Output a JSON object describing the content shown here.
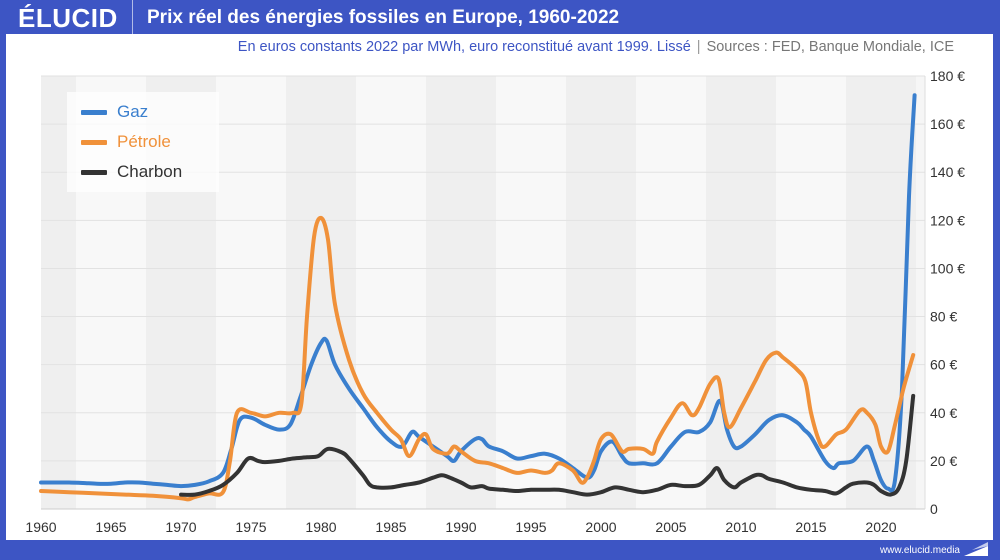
{
  "header": {
    "logo": "ÉLUCID",
    "title": "Prix réel des énergies fossiles en Europe, 1960-2022"
  },
  "subtitle": {
    "text": "En euros constants 2022 par MWh, euro reconstitué avant 1999. Lissé",
    "separator": "|",
    "sources": "Sources : FED, Banque Mondiale, ICE"
  },
  "footer": {
    "url": "www.elucid.media"
  },
  "colors": {
    "brand": "#3d55c4",
    "gaz": "#3a7fce",
    "petrole": "#f0913a",
    "charbon": "#333333"
  },
  "chart_data": {
    "type": "line",
    "title": "Prix réel des énergies fossiles en Europe, 1960-2022",
    "subtitle": "En euros constants 2022 par MWh, euro reconstitué avant 1999. Lissé",
    "xlabel": "",
    "ylabel": "",
    "xlim": [
      1960,
      2022.5
    ],
    "ylim": [
      0,
      180
    ],
    "x_ticks": [
      "1960",
      "1965",
      "1970",
      "1975",
      "1980",
      "1985",
      "1990",
      "1995",
      "2000",
      "2005",
      "2010",
      "2015",
      "2020"
    ],
    "y_ticks": [
      "0",
      "20 €",
      "40 €",
      "60 €",
      "80 €",
      "100 €",
      "120 €",
      "140 €",
      "160 €",
      "180 €"
    ],
    "grid": true,
    "legend": "top-left",
    "series": [
      {
        "name": "Gaz",
        "color": "#3a7fce",
        "points": [
          [
            1960,
            11
          ],
          [
            1961,
            11
          ],
          [
            1962,
            11
          ],
          [
            1963,
            10.8
          ],
          [
            1964,
            10.5
          ],
          [
            1965,
            10.5
          ],
          [
            1966,
            11
          ],
          [
            1967,
            11
          ],
          [
            1968,
            10.5
          ],
          [
            1969,
            10
          ],
          [
            1970,
            9.5
          ],
          [
            1971,
            10
          ],
          [
            1972,
            11.5
          ],
          [
            1973,
            15
          ],
          [
            1973.6,
            25
          ],
          [
            1974.2,
            37
          ],
          [
            1975,
            38
          ],
          [
            1976,
            35
          ],
          [
            1977,
            33
          ],
          [
            1977.8,
            35
          ],
          [
            1978.5,
            46
          ],
          [
            1979.3,
            60
          ],
          [
            1980,
            69
          ],
          [
            1980.4,
            70
          ],
          [
            1981,
            60
          ],
          [
            1982,
            50
          ],
          [
            1983,
            42
          ],
          [
            1984,
            34
          ],
          [
            1985,
            28
          ],
          [
            1985.8,
            26
          ],
          [
            1986.5,
            32
          ],
          [
            1987,
            30
          ],
          [
            1988,
            26
          ],
          [
            1989,
            22
          ],
          [
            1989.5,
            20
          ],
          [
            1990,
            24
          ],
          [
            1991,
            29
          ],
          [
            1991.5,
            29
          ],
          [
            1992,
            26
          ],
          [
            1993,
            24
          ],
          [
            1994,
            21
          ],
          [
            1995,
            22
          ],
          [
            1996,
            23
          ],
          [
            1997,
            21
          ],
          [
            1998,
            17
          ],
          [
            1999,
            13
          ],
          [
            1999.5,
            16
          ],
          [
            2000,
            24
          ],
          [
            2000.8,
            28
          ],
          [
            2001.5,
            22
          ],
          [
            2002,
            19
          ],
          [
            2003,
            19
          ],
          [
            2004,
            19
          ],
          [
            2005,
            26
          ],
          [
            2006,
            32
          ],
          [
            2007,
            32
          ],
          [
            2007.8,
            36
          ],
          [
            2008.5,
            45
          ],
          [
            2009,
            33
          ],
          [
            2009.5,
            26
          ],
          [
            2010,
            26
          ],
          [
            2011,
            31
          ],
          [
            2012,
            37
          ],
          [
            2013,
            39
          ],
          [
            2014,
            36
          ],
          [
            2014.5,
            33
          ],
          [
            2015,
            30
          ],
          [
            2016,
            20
          ],
          [
            2016.6,
            17
          ],
          [
            2017,
            19
          ],
          [
            2018,
            20
          ],
          [
            2019,
            26
          ],
          [
            2019.5,
            20
          ],
          [
            2020,
            12
          ],
          [
            2020.5,
            8.5
          ],
          [
            2021,
            12
          ],
          [
            2021.5,
            50
          ],
          [
            2022,
            130
          ],
          [
            2022.4,
            172
          ]
        ]
      },
      {
        "name": "Pétrole",
        "color": "#f0913a",
        "points": [
          [
            1960,
            7.5
          ],
          [
            1962,
            7
          ],
          [
            1964,
            6.5
          ],
          [
            1966,
            6
          ],
          [
            1968,
            5.5
          ],
          [
            1970,
            4.5
          ],
          [
            1970.5,
            4
          ],
          [
            1971,
            5
          ],
          [
            1972,
            6.5
          ],
          [
            1973,
            7
          ],
          [
            1973.5,
            20
          ],
          [
            1974,
            40
          ],
          [
            1975,
            40
          ],
          [
            1976,
            38.5
          ],
          [
            1977,
            40
          ],
          [
            1978,
            40
          ],
          [
            1978.6,
            44
          ],
          [
            1979,
            80
          ],
          [
            1979.5,
            113
          ],
          [
            1980,
            121
          ],
          [
            1980.5,
            112
          ],
          [
            1981,
            85
          ],
          [
            1982,
            62
          ],
          [
            1983,
            48
          ],
          [
            1984,
            40
          ],
          [
            1985,
            33
          ],
          [
            1985.7,
            29
          ],
          [
            1986.3,
            22
          ],
          [
            1987,
            29
          ],
          [
            1987.5,
            31
          ],
          [
            1988,
            25
          ],
          [
            1989,
            23
          ],
          [
            1989.5,
            26
          ],
          [
            1990,
            24
          ],
          [
            1991,
            20
          ],
          [
            1992,
            19
          ],
          [
            1993,
            17
          ],
          [
            1994,
            15
          ],
          [
            1995,
            16
          ],
          [
            1996,
            15
          ],
          [
            1996.5,
            16
          ],
          [
            1997,
            19
          ],
          [
            1998,
            16
          ],
          [
            1998.6,
            11
          ],
          [
            1999,
            13
          ],
          [
            1999.5,
            20
          ],
          [
            2000,
            29
          ],
          [
            2000.7,
            31
          ],
          [
            2001.5,
            24
          ],
          [
            2002,
            25
          ],
          [
            2003,
            25
          ],
          [
            2003.7,
            23
          ],
          [
            2004,
            28
          ],
          [
            2005,
            38
          ],
          [
            2005.8,
            44
          ],
          [
            2006.5,
            39
          ],
          [
            2007,
            42
          ],
          [
            2007.8,
            52
          ],
          [
            2008.4,
            54
          ],
          [
            2008.8,
            40
          ],
          [
            2009.2,
            34
          ],
          [
            2010,
            42
          ],
          [
            2011,
            53
          ],
          [
            2011.8,
            62
          ],
          [
            2012.5,
            65
          ],
          [
            2013,
            63
          ],
          [
            2014,
            58
          ],
          [
            2014.6,
            53
          ],
          [
            2015,
            40
          ],
          [
            2015.6,
            28
          ],
          [
            2016,
            26
          ],
          [
            2016.8,
            31
          ],
          [
            2017.5,
            33
          ],
          [
            2018.5,
            41
          ],
          [
            2019,
            40
          ],
          [
            2019.6,
            35
          ],
          [
            2020,
            26
          ],
          [
            2020.5,
            24
          ],
          [
            2021,
            35
          ],
          [
            2021.6,
            50
          ],
          [
            2022.3,
            64
          ]
        ]
      },
      {
        "name": "Charbon",
        "color": "#333333",
        "points": [
          [
            1970,
            6
          ],
          [
            1971,
            6
          ],
          [
            1972,
            7.5
          ],
          [
            1973,
            10
          ],
          [
            1974,
            15
          ],
          [
            1974.8,
            21
          ],
          [
            1975.5,
            20
          ],
          [
            1976,
            19.5
          ],
          [
            1977,
            20
          ],
          [
            1978,
            21
          ],
          [
            1979,
            21.5
          ],
          [
            1979.8,
            22
          ],
          [
            1980.5,
            25
          ],
          [
            1981.5,
            23.5
          ],
          [
            1982,
            21
          ],
          [
            1983,
            14
          ],
          [
            1983.5,
            10
          ],
          [
            1984,
            9
          ],
          [
            1985,
            9
          ],
          [
            1986,
            10
          ],
          [
            1987,
            11
          ],
          [
            1988,
            13
          ],
          [
            1988.6,
            14
          ],
          [
            1989,
            13.5
          ],
          [
            1990,
            11
          ],
          [
            1990.7,
            9
          ],
          [
            1991.5,
            9.5
          ],
          [
            1992,
            8.5
          ],
          [
            1993,
            8
          ],
          [
            1994,
            7.5
          ],
          [
            1995,
            8
          ],
          [
            1996,
            8
          ],
          [
            1997,
            8
          ],
          [
            1998,
            7
          ],
          [
            1999,
            6
          ],
          [
            2000,
            7
          ],
          [
            2001,
            9
          ],
          [
            2002,
            8
          ],
          [
            2003,
            7
          ],
          [
            2004,
            8
          ],
          [
            2005,
            10
          ],
          [
            2006,
            9.5
          ],
          [
            2007,
            10
          ],
          [
            2007.8,
            14
          ],
          [
            2008.3,
            17
          ],
          [
            2008.8,
            12
          ],
          [
            2009.5,
            9
          ],
          [
            2010,
            11
          ],
          [
            2011,
            14
          ],
          [
            2011.5,
            14
          ],
          [
            2012,
            12.5
          ],
          [
            2013,
            11
          ],
          [
            2014,
            9
          ],
          [
            2015,
            8
          ],
          [
            2016,
            7.5
          ],
          [
            2016.8,
            6.5
          ],
          [
            2017.5,
            9
          ],
          [
            2018,
            10.5
          ],
          [
            2019,
            11
          ],
          [
            2019.5,
            10
          ],
          [
            2020,
            7.5
          ],
          [
            2020.7,
            6
          ],
          [
            2021.3,
            9
          ],
          [
            2021.8,
            20
          ],
          [
            2022.3,
            47
          ]
        ]
      }
    ]
  }
}
